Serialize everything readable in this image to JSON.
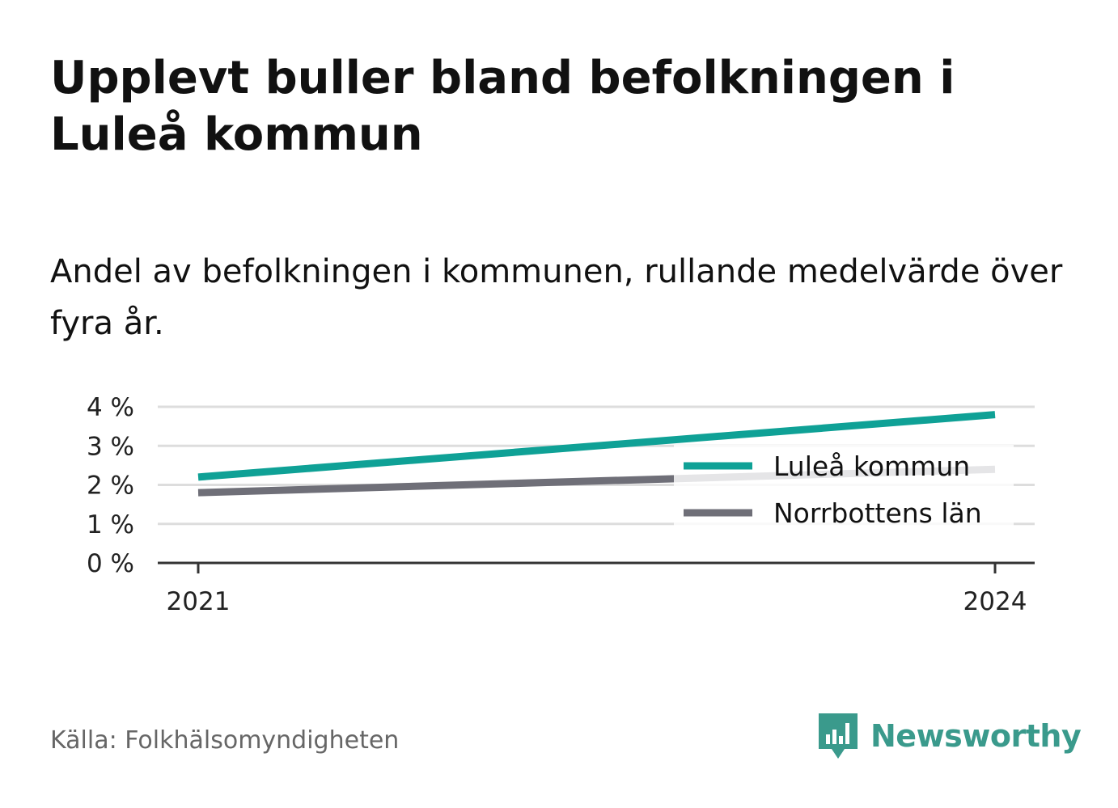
{
  "title": "Upplevt buller bland befolkningen i Luleå kommun",
  "subtitle": "Andel av befolkningen i kommunen, rullande medelvärde över fyra år.",
  "source": "Källa: Folkhälsomyndigheten",
  "brand": {
    "name": "Newsworthy",
    "icon": "newsworthy-logo-icon",
    "color": "#3a9a8c"
  },
  "chart_data": {
    "type": "line",
    "x": [
      "2021",
      "2024"
    ],
    "xticks": [
      "2021",
      "2024"
    ],
    "yticks": [
      "0 %",
      "1 %",
      "2 %",
      "3 %",
      "4 %"
    ],
    "ylim": [
      0,
      4
    ],
    "grid": true,
    "legend_position": "right",
    "series": [
      {
        "name": "Luleå kommun",
        "values": [
          2.2,
          3.8
        ],
        "color": "#0fa196"
      },
      {
        "name": "Norrbottens län",
        "values": [
          1.8,
          2.4
        ],
        "color": "#6f6f78"
      }
    ]
  }
}
